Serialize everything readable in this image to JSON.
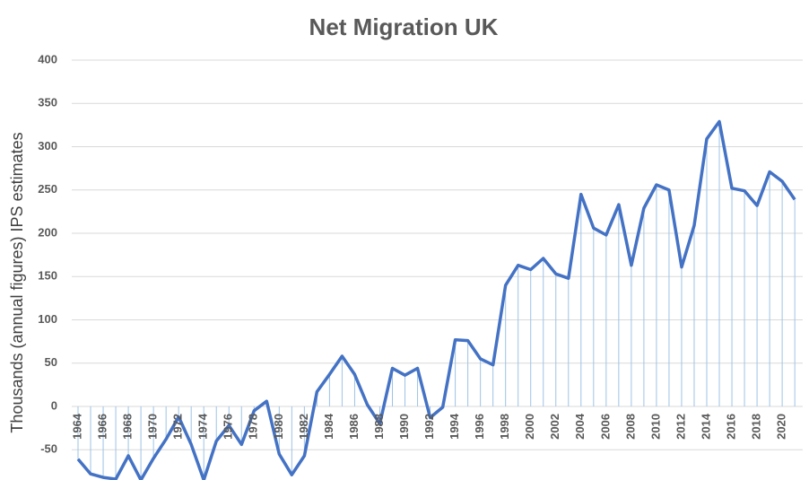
{
  "chart_data": {
    "type": "line",
    "title": "Net Migration UK",
    "y_label": "Thousands (annual figures) IPS estimates",
    "categories": [
      "1964",
      null,
      "1966",
      null,
      "1968",
      null,
      "1970",
      null,
      "1972",
      null,
      "1974",
      null,
      "1976",
      null,
      "1978",
      null,
      "1980",
      null,
      "1982",
      null,
      "1984",
      null,
      "1986",
      null,
      "1988",
      null,
      "1990",
      null,
      "1992",
      null,
      "1994",
      null,
      "1996",
      null,
      "1998",
      null,
      "2000",
      null,
      "2002",
      null,
      "2004",
      null,
      "2006",
      null,
      "2008",
      null,
      "2010",
      null,
      "2012",
      null,
      "2014",
      null,
      "2016",
      null,
      "2018",
      null,
      "2020",
      null
    ],
    "values": [
      -61,
      -78,
      -82,
      -84,
      -57,
      -85,
      -60,
      -38,
      -12,
      -44,
      -85,
      -40,
      -22,
      -44,
      -5,
      6,
      -55,
      -79,
      -57,
      17,
      37,
      58,
      37,
      2,
      -20,
      44,
      36,
      44,
      -13,
      -1,
      77,
      76,
      55,
      48,
      140,
      163,
      158,
      171,
      153,
      148,
      245,
      206,
      198,
      233,
      163,
      229,
      256,
      250,
      161,
      209,
      309,
      329,
      252,
      249,
      232,
      271,
      260,
      239
    ],
    "color": "#4472c4",
    "drop_line_color": "#9dc3e6",
    "ylim": [
      -85,
      400
    ],
    "yticks": [
      -50,
      0,
      50,
      100,
      150,
      200,
      250,
      300,
      350,
      400
    ],
    "grid": true
  }
}
